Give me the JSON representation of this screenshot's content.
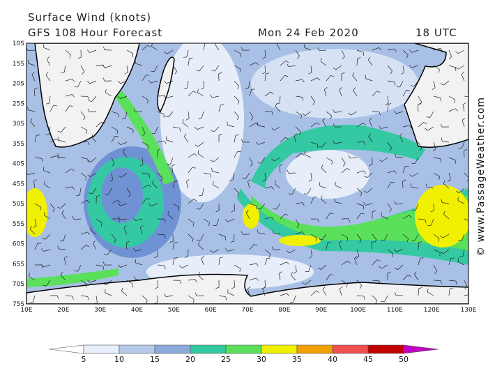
{
  "header": {
    "title": "Surface Wind (knots)",
    "subtitle": "GFS 108 Hour Forecast",
    "date": "Mon 24 Feb 2020",
    "time": "18 UTC"
  },
  "map": {
    "lat_labels": [
      "10S",
      "15S",
      "20S",
      "25S",
      "30S",
      "35S",
      "40S",
      "45S",
      "50S",
      "55S",
      "60S",
      "65S",
      "70S",
      "75S"
    ],
    "lon_labels": [
      "10E",
      "20E",
      "30E",
      "40E",
      "50E",
      "60E",
      "70E",
      "80E",
      "90E",
      "100E",
      "110E",
      "120E",
      "130E"
    ]
  },
  "legend": {
    "ticks": [
      "5",
      "10",
      "15",
      "20",
      "25",
      "30",
      "35",
      "40",
      "45",
      "50"
    ]
  },
  "credit": "© www.PassageWeather.com"
}
